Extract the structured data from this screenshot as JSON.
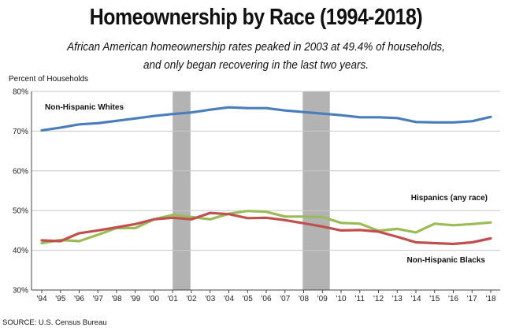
{
  "title": "Homeownership by Race (1994-2018)",
  "subtitle_line1": "African American homeownership rates peaked in 2003 at 49.4% of households,",
  "subtitle_line2": "and only began recovering in the last two years.",
  "source": "SOURCE: U.S. Census Bureau",
  "chart_data": {
    "type": "line",
    "ylabel": "Percent of Households",
    "ylim": [
      30,
      80
    ],
    "yticks": [
      30,
      40,
      50,
      60,
      70,
      80
    ],
    "ytick_labels": [
      "30%",
      "40%",
      "50%",
      "60%",
      "70%",
      "80%"
    ],
    "xlim": [
      1994,
      2018
    ],
    "xtick_labels": [
      "'94",
      "'95",
      "'96",
      "'97",
      "'98",
      "'99",
      "'00",
      "'01",
      "'02",
      "'03",
      "'04",
      "'05",
      "'06",
      "'07",
      "'08",
      "'09",
      "'10",
      "'11",
      "'12",
      "'13",
      "'14",
      "'15",
      "'16",
      "'17",
      "'18"
    ],
    "grid": "horizontal",
    "recession_shading": [
      [
        2001.0,
        2001.95
      ],
      [
        2007.95,
        2009.4
      ]
    ],
    "series": [
      {
        "name": "Non-Hispanic Whites",
        "color": "#4a7ebb",
        "x": [
          1994,
          1995,
          1996,
          1997,
          1998,
          1999,
          2000,
          2001,
          2002,
          2003,
          2004,
          2005,
          2006,
          2007,
          2008,
          2009,
          2010,
          2011,
          2012,
          2013,
          2014,
          2015,
          2016,
          2017,
          2018
        ],
        "values": [
          70.2,
          70.9,
          71.7,
          72.0,
          72.6,
          73.2,
          73.8,
          74.3,
          74.7,
          75.4,
          76.0,
          75.8,
          75.8,
          75.2,
          74.8,
          74.4,
          74.0,
          73.5,
          73.5,
          73.3,
          72.3,
          72.2,
          72.2,
          72.5,
          73.6
        ]
      },
      {
        "name": "Hispanics (any race)",
        "color": "#9bbb59",
        "x": [
          1994,
          1995,
          1996,
          1997,
          1998,
          1999,
          2000,
          2001,
          2002,
          2003,
          2004,
          2005,
          2006,
          2007,
          2008,
          2009,
          2010,
          2011,
          2012,
          2013,
          2014,
          2015,
          2016,
          2017,
          2018
        ],
        "values": [
          41.8,
          42.6,
          42.3,
          43.9,
          45.6,
          45.6,
          47.8,
          48.9,
          48.4,
          47.8,
          49.2,
          49.9,
          49.7,
          48.5,
          48.5,
          48.4,
          46.9,
          46.7,
          44.9,
          45.4,
          44.5,
          46.7,
          46.3,
          46.6,
          47.0
        ]
      },
      {
        "name": "Non-Hispanic Blacks",
        "color": "#c0504d",
        "x": [
          1994,
          1995,
          1996,
          1997,
          1998,
          1999,
          2000,
          2001,
          2002,
          2003,
          2004,
          2005,
          2006,
          2007,
          2008,
          2009,
          2010,
          2011,
          2012,
          2013,
          2014,
          2015,
          2016,
          2017,
          2018
        ],
        "values": [
          42.5,
          42.3,
          44.3,
          45.0,
          45.8,
          46.6,
          47.8,
          48.2,
          47.8,
          49.4,
          49.1,
          48.1,
          48.2,
          47.6,
          46.8,
          46.0,
          45.0,
          45.1,
          44.7,
          43.4,
          42.0,
          41.8,
          41.6,
          42.0,
          43.0
        ]
      }
    ]
  }
}
